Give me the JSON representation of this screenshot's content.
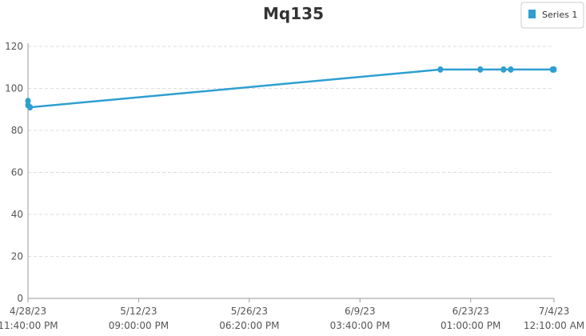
{
  "chart_data": {
    "type": "line",
    "title": "Mq135",
    "x": [
      "2023-04-28T23:40:00Z",
      "2023-04-28T23:45:00Z",
      "2023-04-29T06:00:00Z",
      "2023-06-19T18:00:00Z",
      "2023-06-24T18:00:00Z",
      "2023-06-27T16:00:00Z",
      "2023-06-28T14:00:00Z",
      "2023-07-03T20:00:00Z",
      "2023-07-04T00:00:00Z"
    ],
    "series": [
      {
        "name": "Series 1",
        "color": "#2e9fd0",
        "values": [
          94,
          92,
          91,
          109,
          109,
          109,
          109,
          109,
          109
        ]
      }
    ],
    "xlim": [
      "2023-04-28T23:40:00Z",
      "2023-07-04T00:10:00Z"
    ],
    "xticks": [
      {
        "value": "2023-04-28T23:40:00Z",
        "label": [
          "4/28/23",
          "11:40:00 PM"
        ]
      },
      {
        "value": "2023-05-12T21:00:00Z",
        "label": [
          "5/12/23",
          "09:00:00 PM"
        ]
      },
      {
        "value": "2023-05-26T18:20:00Z",
        "label": [
          "5/26/23",
          "06:20:00 PM"
        ]
      },
      {
        "value": "2023-06-09T15:40:00Z",
        "label": [
          "6/9/23",
          "03:40:00 PM"
        ]
      },
      {
        "value": "2023-06-23T13:00:00Z",
        "label": [
          "6/23/23",
          "01:00:00 PM"
        ]
      },
      {
        "value": "2023-07-04T00:10:00Z",
        "label": [
          "7/4/23",
          "12:10:00 AM"
        ]
      }
    ],
    "ylim": [
      0,
      120
    ],
    "yticks": [
      0,
      20,
      40,
      60,
      80,
      100,
      120
    ],
    "grid": true,
    "legend": "top-right"
  }
}
